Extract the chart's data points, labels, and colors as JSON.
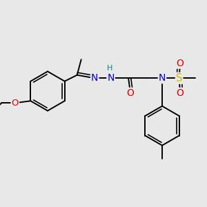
{
  "bg_color": "#e8e8e8",
  "bond_color": "#000000",
  "bond_width": 1.4,
  "atom_colors": {
    "N": "#0000dd",
    "O": "#dd0000",
    "S": "#ccbb00",
    "H": "#008888"
  },
  "font_size": 8.5,
  "figsize": [
    3.0,
    3.0
  ],
  "dpi": 100,
  "xlim": [
    0,
    10
  ],
  "ylim": [
    0,
    10
  ]
}
